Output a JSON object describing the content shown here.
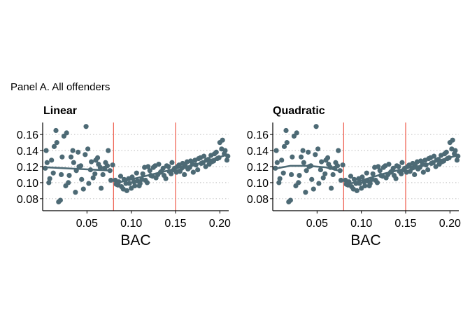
{
  "page": {
    "title": "Panel A. All offenders"
  },
  "colors": {
    "points": "#4d6a75",
    "fit": "#4d6a75",
    "cutoff": "#ee5a4a",
    "grid": "#c8c8c8",
    "axis": "#000000"
  },
  "chart_data": [
    {
      "type": "scatter",
      "title": "Linear",
      "xlabel": "BAC",
      "ylabel": "",
      "xlim": [
        0.0,
        0.21
      ],
      "ylim": [
        0.065,
        0.175
      ],
      "xticks": [
        "0.05",
        "0.10",
        "0.15",
        "0.20"
      ],
      "yticks": [
        "0.08",
        "0.10",
        "0.12",
        "0.14",
        "0.16"
      ],
      "grid": "horizontal dotted",
      "cutoffs": [
        0.08,
        0.15
      ],
      "series": [
        {
          "x": [
            0.003,
            0.005,
            0.008,
            0.012,
            0.016,
            0.02,
            0.022,
            0.026,
            0.03,
            0.034,
            0.037,
            0.041,
            0.044,
            0.048,
            0.052,
            0.055,
            0.059,
            0.062,
            0.066,
            0.07,
            0.074,
            0.077
          ],
          "y": [
            0.118,
            0.125,
            0.105,
            0.112,
            0.15,
            0.078,
            0.132,
            0.096,
            0.109,
            0.14,
            0.088,
            0.12,
            0.104,
            0.135,
            0.099,
            0.126,
            0.111,
            0.131,
            0.093,
            0.118,
            0.14,
            0.103
          ]
        },
        {
          "x": [
            0.004,
            0.007,
            0.01,
            0.013,
            0.015,
            0.018,
            0.021,
            0.024,
            0.027,
            0.029,
            0.032,
            0.035,
            0.038,
            0.04,
            0.043,
            0.046,
            0.049,
            0.051,
            0.054,
            0.057,
            0.06,
            0.063,
            0.065,
            0.068,
            0.071,
            0.073,
            0.076,
            0.079
          ],
          "y": [
            0.14,
            0.1,
            0.128,
            0.145,
            0.165,
            0.076,
            0.11,
            0.158,
            0.162,
            0.1,
            0.132,
            0.125,
            0.115,
            0.138,
            0.121,
            0.092,
            0.17,
            0.142,
            0.116,
            0.106,
            0.128,
            0.123,
            0.119,
            0.11,
            0.125,
            0.121,
            0.115,
            0.122
          ]
        },
        {
          "x": [
            0.082,
            0.085,
            0.088,
            0.091,
            0.094,
            0.097,
            0.1,
            0.103,
            0.106,
            0.109,
            0.112,
            0.115,
            0.118,
            0.121,
            0.124,
            0.127,
            0.13,
            0.133,
            0.136,
            0.139,
            0.142,
            0.145,
            0.148
          ],
          "y": [
            0.103,
            0.097,
            0.108,
            0.092,
            0.099,
            0.105,
            0.093,
            0.101,
            0.112,
            0.096,
            0.104,
            0.119,
            0.1,
            0.115,
            0.108,
            0.121,
            0.11,
            0.113,
            0.118,
            0.105,
            0.12,
            0.111,
            0.116
          ]
        },
        {
          "x": [
            0.083,
            0.086,
            0.089,
            0.092,
            0.095,
            0.098,
            0.101,
            0.104,
            0.107,
            0.11,
            0.113,
            0.116,
            0.119,
            0.122,
            0.125,
            0.128,
            0.131,
            0.134,
            0.137,
            0.14,
            0.143,
            0.146,
            0.149
          ],
          "y": [
            0.098,
            0.101,
            0.095,
            0.104,
            0.09,
            0.099,
            0.107,
            0.096,
            0.102,
            0.099,
            0.111,
            0.103,
            0.12,
            0.109,
            0.119,
            0.106,
            0.123,
            0.114,
            0.109,
            0.121,
            0.114,
            0.125,
            0.118
          ]
        },
        {
          "x": [
            0.151,
            0.154,
            0.157,
            0.16,
            0.163,
            0.166,
            0.169,
            0.172,
            0.175,
            0.178,
            0.181,
            0.184,
            0.187,
            0.19,
            0.193,
            0.196,
            0.199,
            0.202,
            0.205,
            0.208
          ],
          "y": [
            0.113,
            0.122,
            0.118,
            0.11,
            0.126,
            0.119,
            0.123,
            0.128,
            0.116,
            0.131,
            0.125,
            0.12,
            0.129,
            0.134,
            0.127,
            0.138,
            0.131,
            0.142,
            0.136,
            0.128
          ]
        },
        {
          "x": [
            0.152,
            0.155,
            0.158,
            0.161,
            0.164,
            0.167,
            0.17,
            0.173,
            0.176,
            0.179,
            0.182,
            0.185,
            0.188,
            0.191,
            0.194,
            0.197,
            0.2,
            0.203,
            0.206,
            0.209
          ],
          "y": [
            0.12,
            0.114,
            0.124,
            0.121,
            0.117,
            0.127,
            0.113,
            0.122,
            0.13,
            0.124,
            0.133,
            0.128,
            0.123,
            0.126,
            0.136,
            0.13,
            0.15,
            0.153,
            0.14,
            0.133
          ]
        }
      ],
      "fit": [
        {
          "x": [
            0.005,
            0.078
          ],
          "y": [
            0.119,
            0.115
          ]
        },
        {
          "x": [
            0.081,
            0.149
          ],
          "y": [
            0.099,
            0.117
          ]
        },
        {
          "x": [
            0.151,
            0.209
          ],
          "y": [
            0.115,
            0.135
          ]
        }
      ]
    },
    {
      "type": "scatter",
      "title": "Quadratic",
      "xlabel": "BAC",
      "ylabel": "",
      "xlim": [
        0.0,
        0.21
      ],
      "ylim": [
        0.065,
        0.175
      ],
      "xticks": [
        "0.05",
        "0.10",
        "0.15",
        "0.20"
      ],
      "yticks": [
        "0.08",
        "0.10",
        "0.12",
        "0.14",
        "0.16"
      ],
      "grid": "horizontal dotted",
      "cutoffs": [
        0.08,
        0.15
      ],
      "series": [
        {
          "x": [
            0.003,
            0.005,
            0.008,
            0.012,
            0.016,
            0.02,
            0.022,
            0.026,
            0.03,
            0.034,
            0.037,
            0.041,
            0.044,
            0.048,
            0.052,
            0.055,
            0.059,
            0.062,
            0.066,
            0.07,
            0.074,
            0.077
          ],
          "y": [
            0.118,
            0.125,
            0.105,
            0.112,
            0.15,
            0.078,
            0.132,
            0.096,
            0.109,
            0.14,
            0.088,
            0.12,
            0.104,
            0.135,
            0.099,
            0.126,
            0.111,
            0.131,
            0.093,
            0.118,
            0.14,
            0.103
          ]
        },
        {
          "x": [
            0.004,
            0.007,
            0.01,
            0.013,
            0.015,
            0.018,
            0.021,
            0.024,
            0.027,
            0.029,
            0.032,
            0.035,
            0.038,
            0.04,
            0.043,
            0.046,
            0.049,
            0.051,
            0.054,
            0.057,
            0.06,
            0.063,
            0.065,
            0.068,
            0.071,
            0.073,
            0.076,
            0.079
          ],
          "y": [
            0.14,
            0.1,
            0.128,
            0.145,
            0.165,
            0.076,
            0.11,
            0.158,
            0.162,
            0.1,
            0.132,
            0.125,
            0.115,
            0.138,
            0.121,
            0.092,
            0.17,
            0.142,
            0.116,
            0.106,
            0.128,
            0.123,
            0.119,
            0.11,
            0.125,
            0.121,
            0.115,
            0.122
          ]
        },
        {
          "x": [
            0.082,
            0.085,
            0.088,
            0.091,
            0.094,
            0.097,
            0.1,
            0.103,
            0.106,
            0.109,
            0.112,
            0.115,
            0.118,
            0.121,
            0.124,
            0.127,
            0.13,
            0.133,
            0.136,
            0.139,
            0.142,
            0.145,
            0.148
          ],
          "y": [
            0.103,
            0.097,
            0.108,
            0.092,
            0.099,
            0.105,
            0.093,
            0.101,
            0.112,
            0.096,
            0.104,
            0.119,
            0.1,
            0.115,
            0.108,
            0.121,
            0.11,
            0.113,
            0.118,
            0.105,
            0.12,
            0.111,
            0.116
          ]
        },
        {
          "x": [
            0.083,
            0.086,
            0.089,
            0.092,
            0.095,
            0.098,
            0.101,
            0.104,
            0.107,
            0.11,
            0.113,
            0.116,
            0.119,
            0.122,
            0.125,
            0.128,
            0.131,
            0.134,
            0.137,
            0.14,
            0.143,
            0.146,
            0.149
          ],
          "y": [
            0.098,
            0.101,
            0.095,
            0.104,
            0.09,
            0.099,
            0.107,
            0.096,
            0.102,
            0.099,
            0.111,
            0.103,
            0.12,
            0.109,
            0.119,
            0.106,
            0.123,
            0.114,
            0.109,
            0.121,
            0.114,
            0.125,
            0.118
          ]
        },
        {
          "x": [
            0.151,
            0.154,
            0.157,
            0.16,
            0.163,
            0.166,
            0.169,
            0.172,
            0.175,
            0.178,
            0.181,
            0.184,
            0.187,
            0.19,
            0.193,
            0.196,
            0.199,
            0.202,
            0.205,
            0.208
          ],
          "y": [
            0.113,
            0.122,
            0.118,
            0.11,
            0.126,
            0.119,
            0.123,
            0.128,
            0.116,
            0.131,
            0.125,
            0.12,
            0.129,
            0.134,
            0.127,
            0.138,
            0.131,
            0.142,
            0.136,
            0.128
          ]
        },
        {
          "x": [
            0.152,
            0.155,
            0.158,
            0.161,
            0.164,
            0.167,
            0.17,
            0.173,
            0.176,
            0.179,
            0.182,
            0.185,
            0.188,
            0.191,
            0.194,
            0.197,
            0.2,
            0.203,
            0.206,
            0.209
          ],
          "y": [
            0.12,
            0.114,
            0.124,
            0.121,
            0.117,
            0.127,
            0.113,
            0.122,
            0.13,
            0.124,
            0.133,
            0.128,
            0.123,
            0.126,
            0.136,
            0.13,
            0.15,
            0.153,
            0.14,
            0.133
          ]
        }
      ],
      "fit": [
        {
          "x": [
            0.005,
            0.02,
            0.04,
            0.06,
            0.078
          ],
          "y": [
            0.118,
            0.121,
            0.121,
            0.119,
            0.114
          ]
        },
        {
          "x": [
            0.081,
            0.095,
            0.11,
            0.125,
            0.14,
            0.149
          ],
          "y": [
            0.097,
            0.101,
            0.106,
            0.111,
            0.115,
            0.117
          ]
        },
        {
          "x": [
            0.151,
            0.165,
            0.18,
            0.195,
            0.209
          ],
          "y": [
            0.114,
            0.119,
            0.125,
            0.13,
            0.134
          ]
        }
      ]
    }
  ]
}
